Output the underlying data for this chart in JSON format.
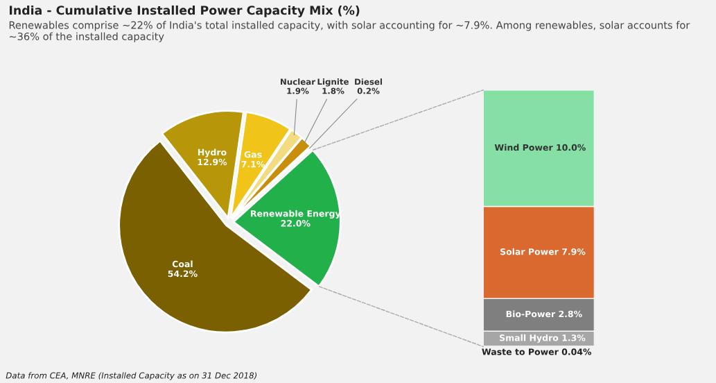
{
  "chart_data": [
    {
      "type": "pie",
      "title": "India - Cumulative Installed Power Capacity Mix (%)",
      "subtitle": "Renewables comprise ~22% of India's total installed capacity, with solar accounting for ~7.9%. Among renewables, solar accounts for ~36% of the installed capacity",
      "annotations": [
        "Data from CEA, MNRE (Installed Capacity as on 31 Dec 2018)"
      ],
      "categories": [
        "Renewable Energy",
        "Diesel",
        "Lignite",
        "Nuclear",
        "Gas",
        "Hydro",
        "Coal"
      ],
      "values": [
        22.0,
        0.2,
        1.8,
        1.9,
        7.1,
        12.9,
        54.2
      ],
      "value_labels": [
        "22.0%",
        "0.2%",
        "1.8%",
        "1.9%",
        "7.1%",
        "12.9%",
        "54.2%"
      ],
      "colors": [
        "#22b04b",
        "#6b5a10",
        "#c8900a",
        "#f3dc80",
        "#f0c419",
        "#b8960a",
        "#7a6000"
      ]
    },
    {
      "type": "bar",
      "stacked": true,
      "categories": [
        null
      ],
      "series": [
        {
          "name": "Waste to Power",
          "color": "#9a9a9a",
          "values": [
            0.04
          ],
          "value_labels": [
            "0.04%"
          ]
        },
        {
          "name": "Small Hydro",
          "color": "#a6a6a6",
          "values": [
            1.3
          ],
          "value_labels": [
            "1.3%"
          ]
        },
        {
          "name": "Bio-Power",
          "color": "#7f7f7f",
          "values": [
            2.8
          ],
          "value_labels": [
            "2.8%"
          ]
        },
        {
          "name": "Solar Power",
          "color": "#d9692e",
          "values": [
            7.9
          ],
          "value_labels": [
            "7.9%"
          ]
        },
        {
          "name": "Wind Power",
          "color": "#86e0a6",
          "values": [
            10.0
          ],
          "value_labels": [
            "10.0%"
          ]
        }
      ]
    }
  ]
}
